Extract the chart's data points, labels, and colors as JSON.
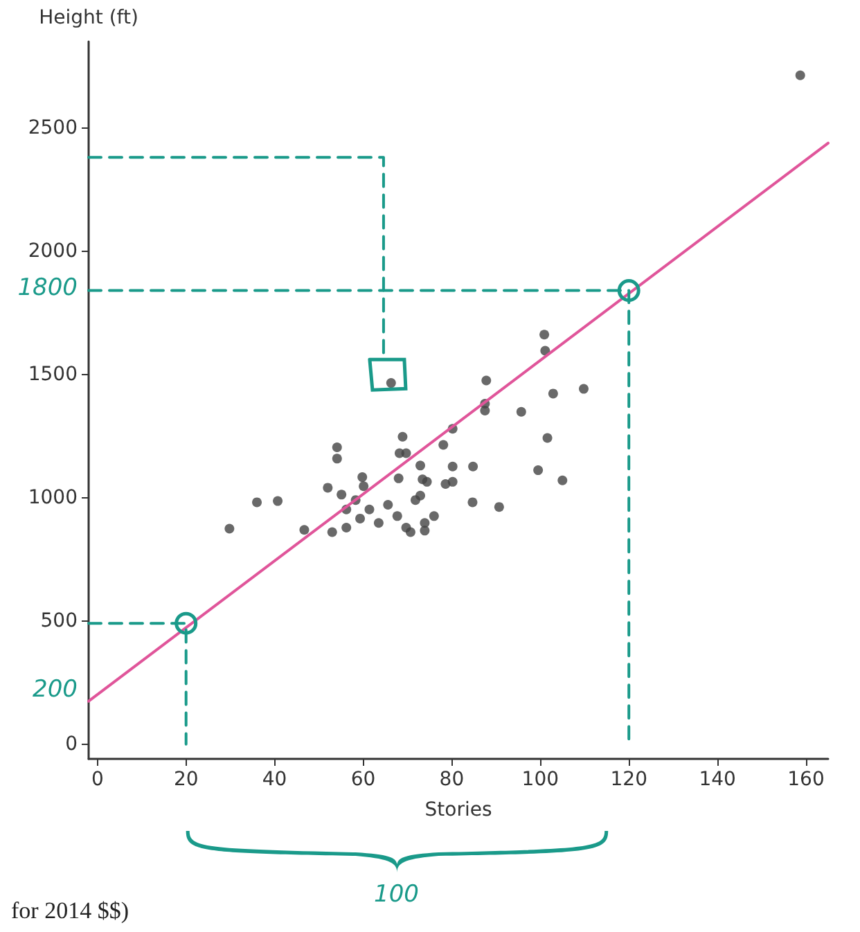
{
  "chart_data": {
    "type": "scatter",
    "xlabel": "Stories",
    "ylabel": "Height (ft)",
    "xlim": [
      -2,
      165
    ],
    "ylim": [
      -60,
      2850
    ],
    "xticks": [
      0,
      20,
      40,
      60,
      80,
      100,
      120,
      140,
      160
    ],
    "yticks": [
      0,
      500,
      1000,
      1500,
      2000,
      2500
    ],
    "grid": false,
    "series": [
      {
        "color": "#444444",
        "marker": "circle",
        "x": [
          100.9,
          101.1,
          66.3,
          87.8,
          87.5,
          87.5,
          102.9,
          109.8,
          95.7,
          80.2,
          78.1,
          101.6,
          68.9,
          68.2,
          69.7,
          54.1,
          54.1,
          72.9,
          80.2,
          84.8,
          99.5,
          105,
          68,
          73.4,
          74.4,
          78.6,
          80.2,
          59.8,
          60.1,
          52,
          55.1,
          36,
          40.7,
          29.8,
          46.7,
          84.7,
          90.7,
          76,
          72.9,
          53,
          56.2,
          59.3,
          61.4,
          63.5,
          65.6,
          67.7,
          69.7,
          71.8,
          73.9,
          58.3,
          56.2,
          70.7,
          73.9,
          158.7
        ],
        "values": [
          1661,
          1596,
          1465,
          1475,
          1381,
          1353,
          1422,
          1441,
          1348,
          1279,
          1214,
          1242,
          1247,
          1180,
          1180,
          1204,
          1158,
          1130,
          1126,
          1126,
          1111,
          1070,
          1078,
          1074,
          1064,
          1055,
          1064,
          1083,
          1046,
          1040,
          1012,
          981,
          986,
          874,
          869,
          981,
          962,
          925,
          1008,
          860,
          878,
          915,
          952,
          897,
          971,
          925,
          878,
          990,
          897,
          990,
          952,
          860,
          866,
          2713
        ]
      },
      {
        "type": "line",
        "color": "#e0559a",
        "marker": "none",
        "line_style": "solid",
        "x": [
          -2,
          165
        ],
        "values": [
          174,
          2438
        ]
      },
      {
        "type": "line",
        "color": "#1a9a8a",
        "marker": "none",
        "line_style": "dashed",
        "x": [
          -2,
          120,
          120
        ],
        "values": [
          1840,
          1840,
          0
        ]
      },
      {
        "type": "line",
        "color": "#1a9a8a",
        "marker": "none",
        "line_style": "dashed",
        "x": [
          -2,
          64.6,
          64.6
        ],
        "values": [
          2380,
          2380,
          1560
        ]
      },
      {
        "type": "line",
        "color": "#1a9a8a",
        "marker": "none",
        "line_style": "dashed",
        "x": [
          -2,
          20,
          20
        ],
        "values": [
          490,
          490,
          0
        ]
      }
    ],
    "annotations": [
      "1800",
      "200",
      "100",
      "for 2014 $$)"
    ]
  }
}
